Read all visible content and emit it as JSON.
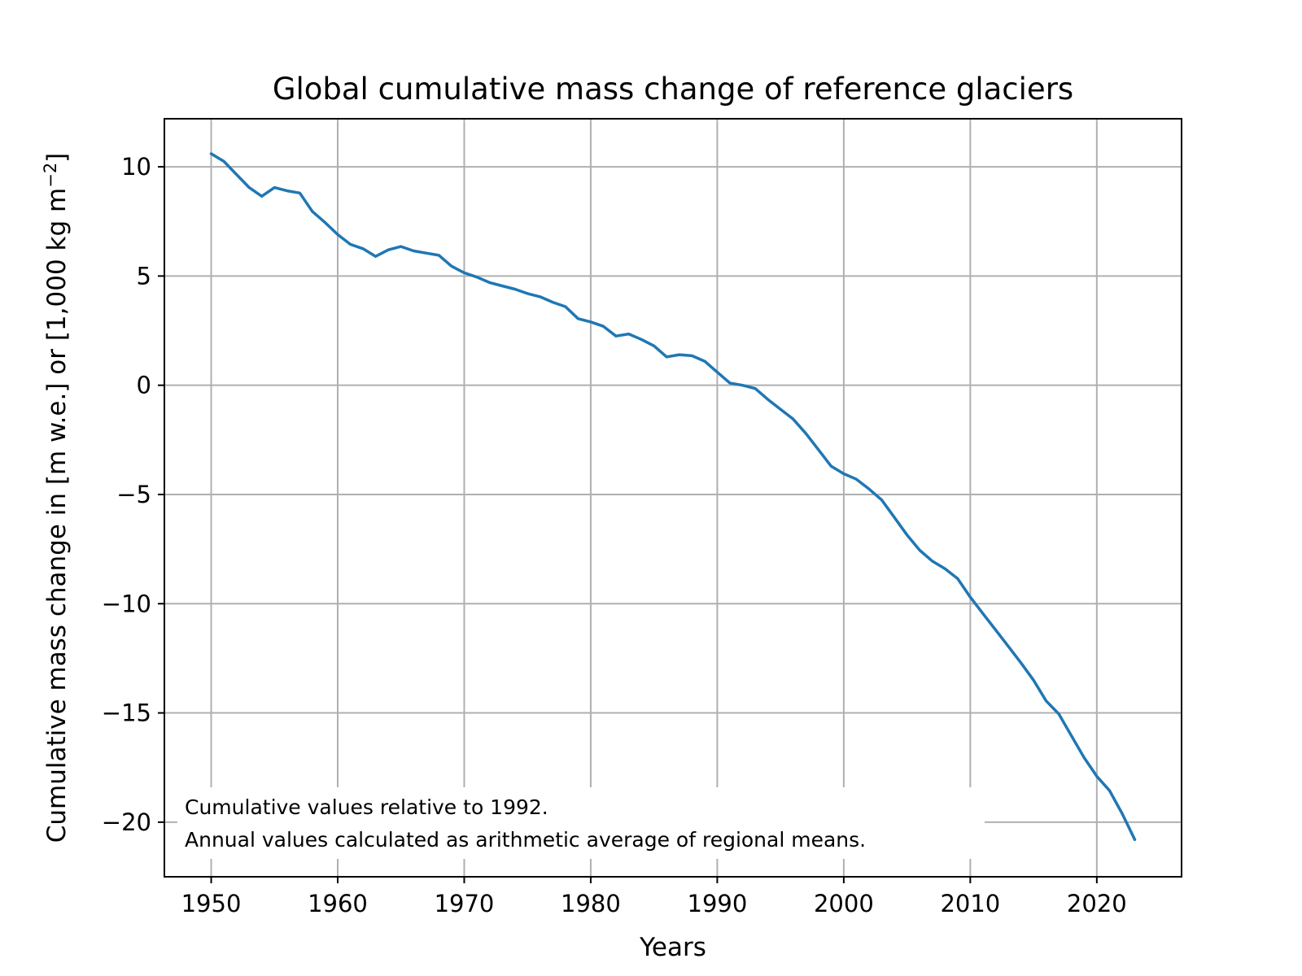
{
  "chart_data": {
    "type": "line",
    "title": "Global cumulative mass change of reference glaciers",
    "xlabel": "Years",
    "ylabel": "Cumulative mass change in [m w.e.] or [1,000 kg m",
    "ylabel_sup": "−2",
    "ylabel_close": "]",
    "xlim": [
      1946.3,
      2026.7
    ],
    "ylim": [
      -22.5,
      12.2
    ],
    "x_ticks": [
      1950,
      1960,
      1970,
      1980,
      1990,
      2000,
      2010,
      2020
    ],
    "y_ticks": [
      10,
      5,
      0,
      -5,
      -10,
      -15,
      -20
    ],
    "y_tick_labels": [
      "10",
      "5",
      "0",
      "−5",
      "−10",
      "−15",
      "−20"
    ],
    "grid": true,
    "line_color": "#1f77b4",
    "annotations": [
      "Cumulative values relative to 1992.",
      "Annual values calculated as arithmetic average of regional means."
    ],
    "series": [
      {
        "x": [
          1950,
          1951,
          1952,
          1953,
          1954,
          1955,
          1956,
          1957,
          1958,
          1959,
          1960,
          1961,
          1962,
          1963,
          1964,
          1965,
          1966,
          1967,
          1968,
          1969,
          1970,
          1971,
          1972,
          1973,
          1974,
          1975,
          1976,
          1977,
          1978,
          1979,
          1980,
          1981,
          1982,
          1983,
          1984,
          1985,
          1986,
          1987,
          1988,
          1989,
          1990,
          1991,
          1992,
          1993,
          1994,
          1995,
          1996,
          1997,
          1998,
          1999,
          2000,
          2001,
          2002,
          2003,
          2004,
          2005,
          2006,
          2007,
          2008,
          2009,
          2010,
          2011,
          2012,
          2013,
          2014,
          2015,
          2016,
          2017,
          2018,
          2019,
          2020,
          2021,
          2022,
          2023
        ],
        "values": [
          10.6,
          10.25,
          9.65,
          9.05,
          8.65,
          9.05,
          8.9,
          8.8,
          7.95,
          7.45,
          6.9,
          6.45,
          6.25,
          5.9,
          6.2,
          6.35,
          6.15,
          6.05,
          5.95,
          5.45,
          5.15,
          4.95,
          4.7,
          4.55,
          4.4,
          4.2,
          4.05,
          3.8,
          3.6,
          3.05,
          2.9,
          2.7,
          2.25,
          2.35,
          2.1,
          1.8,
          1.3,
          1.4,
          1.35,
          1.1,
          0.6,
          0.1,
          0.0,
          -0.15,
          -0.65,
          -1.1,
          -1.55,
          -2.2,
          -2.95,
          -3.7,
          -4.05,
          -4.3,
          -4.75,
          -5.25,
          -6.05,
          -6.85,
          -7.55,
          -8.05,
          -8.4,
          -8.85,
          -9.7,
          -10.45,
          -11.2,
          -11.95,
          -12.7,
          -13.5,
          -14.45,
          -15.05,
          -16.05,
          -17.05,
          -17.9,
          -18.55,
          -19.6,
          -20.8
        ]
      }
    ]
  }
}
